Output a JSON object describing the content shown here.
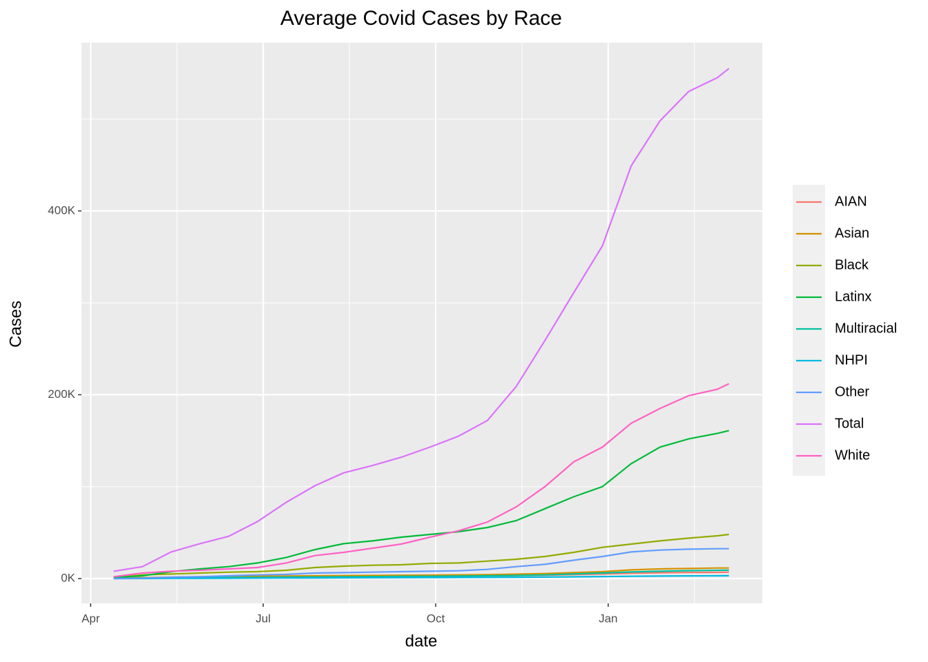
{
  "chart_data": {
    "type": "line",
    "title": "Average Covid Cases by Race",
    "xlabel": "date",
    "ylabel": "Cases",
    "x": [
      4.4,
      4.9,
      5.4,
      5.9,
      6.4,
      6.9,
      7.4,
      7.9,
      8.4,
      8.9,
      9.4,
      9.9,
      10.4,
      10.9,
      11.4,
      11.9,
      12.4,
      12.9,
      13.4,
      13.9,
      14.4,
      14.9,
      15.1
    ],
    "xlim": [
      3.84,
      15.68
    ],
    "xticks": [
      {
        "value": 4,
        "label": "Apr"
      },
      {
        "value": 7,
        "label": "Jul"
      },
      {
        "value": 10,
        "label": "Oct"
      },
      {
        "value": 13,
        "label": "Jan"
      }
    ],
    "ylim": [
      -27000,
      583000
    ],
    "yticks": [
      {
        "value": 0,
        "label": "0K"
      },
      {
        "value": 200000,
        "label": "200K"
      },
      {
        "value": 400000,
        "label": "400K"
      }
    ],
    "grid": true,
    "legend": "right",
    "series": [
      {
        "name": "AIAN",
        "color": "#F8766D",
        "values": [
          200,
          500,
          800,
          1000,
          1200,
          1400,
          1600,
          1800,
          2000,
          2200,
          2400,
          2600,
          2800,
          3000,
          3300,
          3700,
          4300,
          5000,
          5800,
          6300,
          6600,
          6800,
          7000
        ]
      },
      {
        "name": "Asian",
        "color": "#D39200",
        "values": [
          500,
          1000,
          1500,
          2000,
          2200,
          2500,
          2800,
          3000,
          3200,
          3400,
          3600,
          3800,
          4000,
          4300,
          4800,
          5500,
          6500,
          7500,
          9500,
          10500,
          11000,
          11500,
          11500
        ]
      },
      {
        "name": "Black",
        "color": "#93AA00",
        "values": [
          1000,
          4000,
          5000,
          6000,
          7000,
          7500,
          9000,
          12000,
          13500,
          14500,
          15000,
          16500,
          17000,
          19000,
          21000,
          24000,
          28500,
          34000,
          37500,
          41000,
          44000,
          46500,
          48000
        ]
      },
      {
        "name": "Latinx",
        "color": "#00BA38",
        "values": [
          1000,
          3000,
          7500,
          10500,
          13000,
          17000,
          23000,
          31500,
          38000,
          41000,
          45000,
          48000,
          51000,
          55500,
          63000,
          76000,
          89000,
          100000,
          125000,
          143000,
          152000,
          158000,
          161000
        ]
      },
      {
        "name": "Multiracial",
        "color": "#00C19F",
        "values": [
          200,
          400,
          600,
          900,
          1100,
          1300,
          1500,
          1700,
          1900,
          2100,
          2300,
          2500,
          2700,
          3000,
          3400,
          4000,
          5000,
          6000,
          7200,
          8000,
          8600,
          9000,
          9200
        ]
      },
      {
        "name": "NHPI",
        "color": "#00B9E3",
        "values": [
          0,
          100,
          200,
          300,
          400,
          500,
          600,
          700,
          800,
          900,
          1000,
          1100,
          1200,
          1300,
          1400,
          1600,
          1900,
          2200,
          2500,
          2700,
          2900,
          3000,
          3100
        ]
      },
      {
        "name": "Other",
        "color": "#619CFF",
        "values": [
          0,
          500,
          1500,
          2000,
          3000,
          4000,
          4500,
          6000,
          6500,
          7000,
          7500,
          8000,
          8500,
          10000,
          13000,
          15500,
          20000,
          24000,
          29000,
          31000,
          32000,
          32500,
          32500
        ]
      },
      {
        "name": "Total",
        "color": "#DB72FB",
        "values": [
          8000,
          13000,
          29000,
          38000,
          46000,
          62000,
          83000,
          101000,
          115000,
          123000,
          132000,
          143000,
          155000,
          172000,
          209000,
          259000,
          311000,
          362000,
          449000,
          498000,
          530000,
          545000,
          555000
        ]
      },
      {
        "name": "White",
        "color": "#FF61C3",
        "values": [
          2000,
          6000,
          8000,
          9000,
          10500,
          12000,
          17000,
          25000,
          28500,
          33000,
          37500,
          45000,
          52000,
          61500,
          78000,
          100000,
          127000,
          143000,
          169000,
          185000,
          199000,
          206000,
          212000
        ]
      }
    ]
  }
}
